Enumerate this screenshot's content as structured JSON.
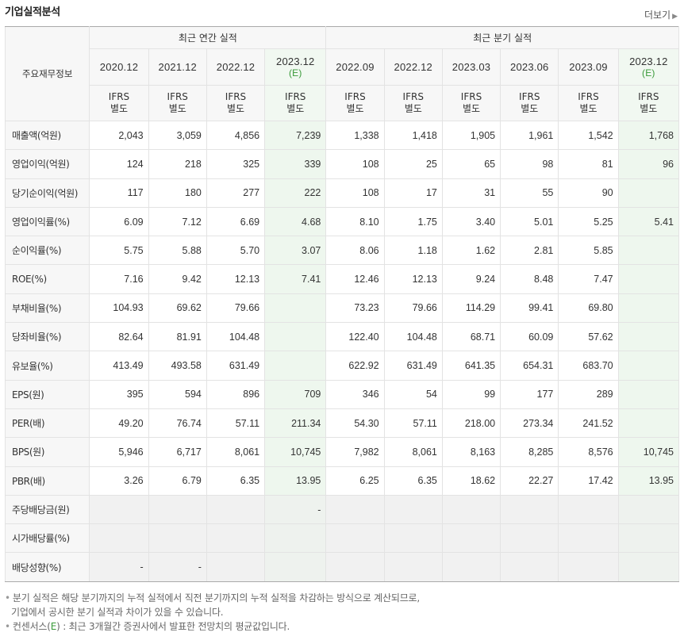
{
  "title": "기업실적분석",
  "more_label": "더보기",
  "header": {
    "row_label": "주요재무정보",
    "annual_group": "최근 연간 실적",
    "quarter_group": "최근 분기 실적",
    "ifrs_line1": "IFRS",
    "ifrs_line2": "별도",
    "periods": [
      {
        "year": "2020.12",
        "est": ""
      },
      {
        "year": "2021.12",
        "est": ""
      },
      {
        "year": "2022.12",
        "est": ""
      },
      {
        "year": "2023.12",
        "est": "(E)"
      },
      {
        "year": "2022.09",
        "est": ""
      },
      {
        "year": "2022.12",
        "est": ""
      },
      {
        "year": "2023.03",
        "est": ""
      },
      {
        "year": "2023.06",
        "est": ""
      },
      {
        "year": "2023.09",
        "est": ""
      },
      {
        "year": "2023.12",
        "est": "(E)"
      }
    ]
  },
  "rows": [
    {
      "label": "매출액(억원)",
      "values": [
        "2,043",
        "3,059",
        "4,856",
        "7,239",
        "1,338",
        "1,418",
        "1,905",
        "1,961",
        "1,542",
        "1,768"
      ]
    },
    {
      "label": "영업이익(억원)",
      "values": [
        "124",
        "218",
        "325",
        "339",
        "108",
        "25",
        "65",
        "98",
        "81",
        "96"
      ]
    },
    {
      "label": "당기순이익(억원)",
      "values": [
        "117",
        "180",
        "277",
        "222",
        "108",
        "17",
        "31",
        "55",
        "90",
        ""
      ]
    },
    {
      "label": "영업이익률(%)",
      "values": [
        "6.09",
        "7.12",
        "6.69",
        "4.68",
        "8.10",
        "1.75",
        "3.40",
        "5.01",
        "5.25",
        "5.41"
      ]
    },
    {
      "label": "순이익률(%)",
      "values": [
        "5.75",
        "5.88",
        "5.70",
        "3.07",
        "8.06",
        "1.18",
        "1.62",
        "2.81",
        "5.85",
        ""
      ]
    },
    {
      "label": "ROE(%)",
      "values": [
        "7.16",
        "9.42",
        "12.13",
        "7.41",
        "12.46",
        "12.13",
        "9.24",
        "8.48",
        "7.47",
        ""
      ]
    },
    {
      "label": "부채비율(%)",
      "values": [
        "104.93",
        "69.62",
        "79.66",
        "",
        "73.23",
        "79.66",
        "114.29",
        "99.41",
        "69.80",
        ""
      ]
    },
    {
      "label": "당좌비율(%)",
      "values": [
        "82.64",
        "81.91",
        "104.48",
        "",
        "122.40",
        "104.48",
        "68.71",
        "60.09",
        "57.62",
        ""
      ]
    },
    {
      "label": "유보율(%)",
      "values": [
        "413.49",
        "493.58",
        "631.49",
        "",
        "622.92",
        "631.49",
        "641.35",
        "654.31",
        "683.70",
        ""
      ]
    },
    {
      "label": "EPS(원)",
      "values": [
        "395",
        "594",
        "896",
        "709",
        "346",
        "54",
        "99",
        "177",
        "289",
        ""
      ]
    },
    {
      "label": "PER(배)",
      "values": [
        "49.20",
        "76.74",
        "57.11",
        "211.34",
        "54.30",
        "57.11",
        "218.00",
        "273.34",
        "241.52",
        ""
      ]
    },
    {
      "label": "BPS(원)",
      "values": [
        "5,946",
        "6,717",
        "8,061",
        "10,745",
        "7,982",
        "8,061",
        "8,163",
        "8,285",
        "8,576",
        "10,745"
      ]
    },
    {
      "label": "PBR(배)",
      "values": [
        "3.26",
        "6.79",
        "6.35",
        "13.95",
        "6.25",
        "6.35",
        "18.62",
        "22.27",
        "17.42",
        "13.95"
      ]
    },
    {
      "label": "주당배당금(원)",
      "values": [
        "",
        "",
        "",
        "-",
        "",
        "",
        "",
        "",
        "",
        ""
      ]
    },
    {
      "label": "시가배당률(%)",
      "values": [
        "",
        "",
        "",
        "",
        "",
        "",
        "",
        "",
        "",
        ""
      ]
    },
    {
      "label": "배당성향(%)",
      "values": [
        "-",
        "-",
        "",
        "",
        "",
        "",
        "",
        "",
        "",
        ""
      ]
    }
  ],
  "notes": {
    "line1": "분기 실적은 해당 분기까지의 누적 실적에서 직전 분기까지의 누적 실적을 차감하는 방식으로 계산되므로,",
    "line2": "기업에서 공시한 분기 실적과 차이가 있을 수 있습니다.",
    "line3_prefix": "컨센서스(",
    "line3_e": "E",
    "line3_suffix": ") : 최근 3개월간 증권사에서 발표한 전망치의 평균값입니다."
  },
  "colors": {
    "ifrs": "#e07000",
    "estimate": "#3a9a3a",
    "estimate_bg": "#eef7ee"
  }
}
